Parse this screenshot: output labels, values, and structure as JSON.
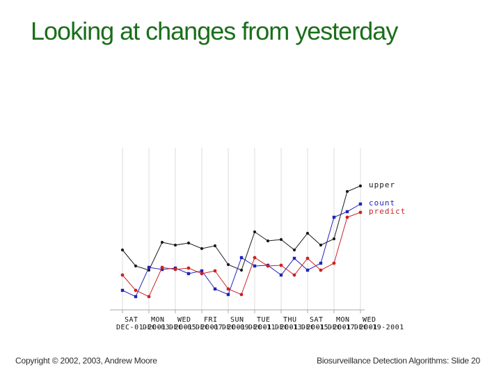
{
  "slide": {
    "title": "Looking at changes from yesterday",
    "title_color": "#1a6e1a",
    "background_color": "#ffffff",
    "footer": {
      "left": "Copyright © 2002, 2003, Andrew Moore",
      "right": "Biosurveillance Detection Algorithms: Slide 20"
    }
  },
  "chart_data": {
    "type": "line",
    "title": "",
    "xlabel": "",
    "ylabel": "",
    "x_tick_days": [
      "SAT",
      "MON",
      "WED",
      "FRI",
      "SUN",
      "TUE",
      "THU",
      "SAT",
      "MON",
      "WED"
    ],
    "x_tick_dates": [
      "DEC-01-2001",
      "DEC-03-2001",
      "DEC-05-2001",
      "DEC-07-2001",
      "DEC-09-2001",
      "DEC-11-2001",
      "DEC-13-2001",
      "DEC-15-2001",
      "DEC-17-2001",
      "DEC-19-2001"
    ],
    "points_per_series": 19,
    "grid": "vertical-gridlines-only",
    "y_axis_visible": false,
    "ylim": [
      0,
      233
    ],
    "y_units": "relative (no y-axis scale shown in image)",
    "legend_position": "right-of-line-ends",
    "series": [
      {
        "name": "upper",
        "color": "#1a1a1a",
        "marker": "circle",
        "line": "solid",
        "values": [
          86,
          63,
          57,
          97,
          93,
          96,
          88,
          92,
          65,
          57,
          112,
          99,
          101,
          86,
          110,
          93,
          102,
          170,
          178
        ]
      },
      {
        "name": "count",
        "color": "#2222bb",
        "marker": "square",
        "line": "solid",
        "values": [
          28,
          19,
          61,
          58,
          60,
          52,
          56,
          30,
          22,
          75,
          63,
          64,
          50,
          74,
          57,
          67,
          133,
          141,
          152
        ]
      },
      {
        "name": "predict",
        "color": "#cc2222",
        "marker": "circle",
        "line": "solid",
        "values": [
          50,
          28,
          19,
          61,
          58,
          60,
          52,
          56,
          30,
          22,
          75,
          63,
          64,
          50,
          74,
          57,
          67,
          133,
          140
        ]
      }
    ]
  }
}
